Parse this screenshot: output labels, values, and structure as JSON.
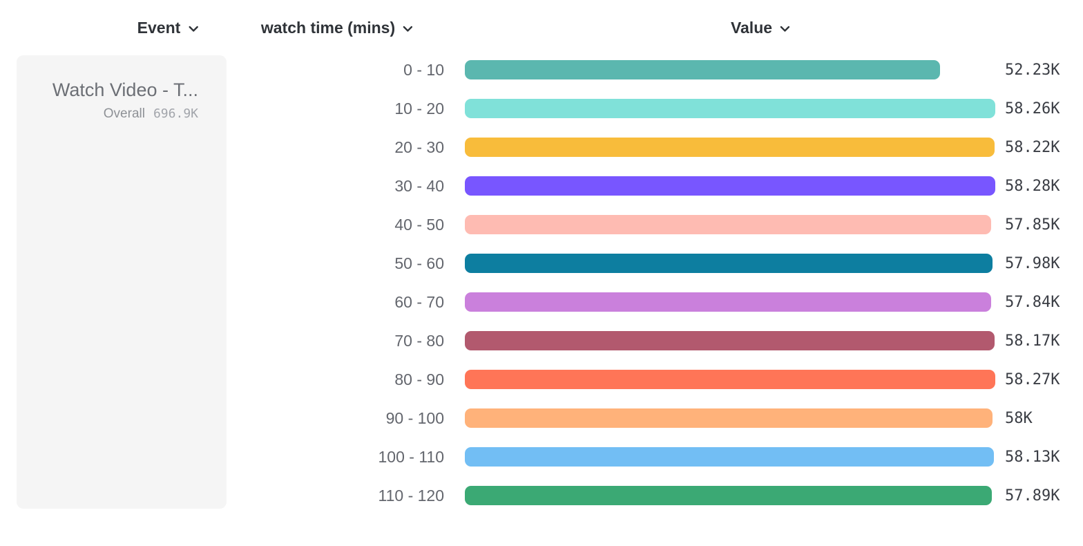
{
  "header": {
    "columns": [
      {
        "label": "Event"
      },
      {
        "label": "watch time (mins)"
      },
      {
        "label": "Value"
      }
    ]
  },
  "event_card": {
    "title": "Watch Video - T...",
    "overall_label": "Overall",
    "overall_value": "696.9K",
    "card_bg": "#F5F5F5"
  },
  "chart_data": {
    "type": "bar",
    "orientation": "horizontal",
    "title": "",
    "xlabel": "Value",
    "ylabel": "watch time (mins)",
    "xlim": [
      0,
      58280
    ],
    "grid": false,
    "categories": [
      "0 - 10",
      "10 - 20",
      "20 - 30",
      "30 - 40",
      "40 - 50",
      "50 - 60",
      "60 - 70",
      "70 - 80",
      "80 - 90",
      "90 - 100",
      "100 - 110",
      "110 - 120"
    ],
    "values": [
      52230,
      58260,
      58220,
      58280,
      57850,
      57980,
      57840,
      58170,
      58270,
      58000,
      58130,
      57890
    ],
    "value_labels": [
      "52.23K",
      "58.26K",
      "58.22K",
      "58.28K",
      "57.85K",
      "57.98K",
      "57.84K",
      "58.17K",
      "58.27K",
      "58K",
      "58.13K",
      "57.89K"
    ],
    "bar_colors": [
      "#5BB7AF",
      "#80E1D9",
      "#F8BC3B",
      "#7856FF",
      "#FEBBB2",
      "#0D7EA0",
      "#CA80DC",
      "#B2596E",
      "#FF7557",
      "#FFB27A",
      "#72BEF4",
      "#3BA974"
    ]
  }
}
